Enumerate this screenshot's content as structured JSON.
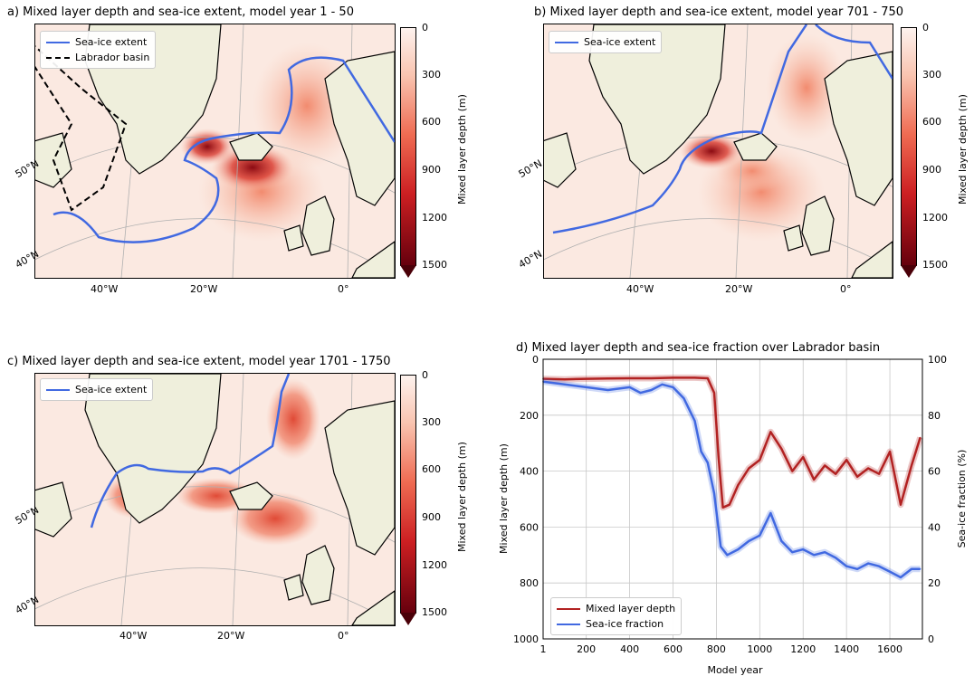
{
  "maps": {
    "a": {
      "title": "a) Mixed layer depth and sea-ice extent, model year 1 - 50",
      "legend": [
        "Sea-ice extent",
        "Labrador basin"
      ]
    },
    "b": {
      "title": "b) Mixed layer depth and sea-ice extent, model year 701 - 750",
      "legend": [
        "Sea-ice extent"
      ]
    },
    "c": {
      "title": "c) Mixed layer depth and sea-ice extent, model year 1701 - 1750",
      "legend": [
        "Sea-ice extent"
      ]
    },
    "lon_labels": [
      "40°W",
      "20°W",
      "0°"
    ],
    "lat_labels": [
      "50°N",
      "40°N"
    ]
  },
  "colorbar": {
    "title": "Mixed layer depth (m)",
    "ticks": [
      "0",
      "300",
      "600",
      "900",
      "1200",
      "1500"
    ],
    "colors": {
      "low": "#fdf2ee",
      "mid": "#ef6b52",
      "high": "#67000d",
      "ice": "#4169e1"
    }
  },
  "chart_data": {
    "type": "line",
    "title": "d) Mixed layer depth and sea-ice fraction over Labrador basin",
    "xlabel": "Model year",
    "ylabel": "Mixed layer depth (m)",
    "ylabel_right": "Sea-ice fraction (%)",
    "xlim": [
      1,
      1750
    ],
    "ylim": [
      1000,
      0
    ],
    "ylim_right": [
      0,
      100
    ],
    "xticks": [
      "1",
      "200",
      "400",
      "600",
      "800",
      "1000",
      "1200",
      "1400",
      "1600"
    ],
    "yticks": [
      "0",
      "200",
      "400",
      "600",
      "800",
      "1000"
    ],
    "yticks_right": [
      "0",
      "20",
      "40",
      "60",
      "80",
      "100"
    ],
    "legend": [
      "Mixed layer depth",
      "Sea-ice fraction"
    ],
    "series": [
      {
        "name": "Mixed layer depth",
        "color": "#b22222",
        "x": [
          1,
          100,
          200,
          300,
          400,
          500,
          600,
          700,
          760,
          790,
          810,
          830,
          860,
          900,
          950,
          1000,
          1050,
          1100,
          1150,
          1200,
          1250,
          1300,
          1350,
          1400,
          1450,
          1500,
          1550,
          1600,
          1650,
          1700,
          1740
        ],
        "values": [
          70,
          72,
          70,
          69,
          68,
          68,
          66,
          66,
          68,
          120,
          350,
          530,
          520,
          450,
          390,
          360,
          260,
          320,
          400,
          350,
          430,
          380,
          410,
          360,
          420,
          390,
          410,
          330,
          520,
          380,
          280
        ]
      },
      {
        "name": "Sea-ice fraction",
        "color": "#4169e1",
        "x": [
          1,
          100,
          200,
          300,
          400,
          450,
          500,
          550,
          600,
          650,
          700,
          730,
          760,
          790,
          820,
          850,
          900,
          950,
          1000,
          1050,
          1100,
          1150,
          1200,
          1250,
          1300,
          1350,
          1400,
          1450,
          1500,
          1550,
          1600,
          1650,
          1700,
          1740
        ],
        "values": [
          92,
          91,
          90,
          89,
          90,
          88,
          89,
          91,
          90,
          86,
          78,
          67,
          63,
          52,
          33,
          30,
          32,
          35,
          37,
          45,
          35,
          31,
          32,
          30,
          31,
          29,
          26,
          25,
          27,
          26,
          24,
          22,
          25,
          25
        ]
      }
    ]
  }
}
